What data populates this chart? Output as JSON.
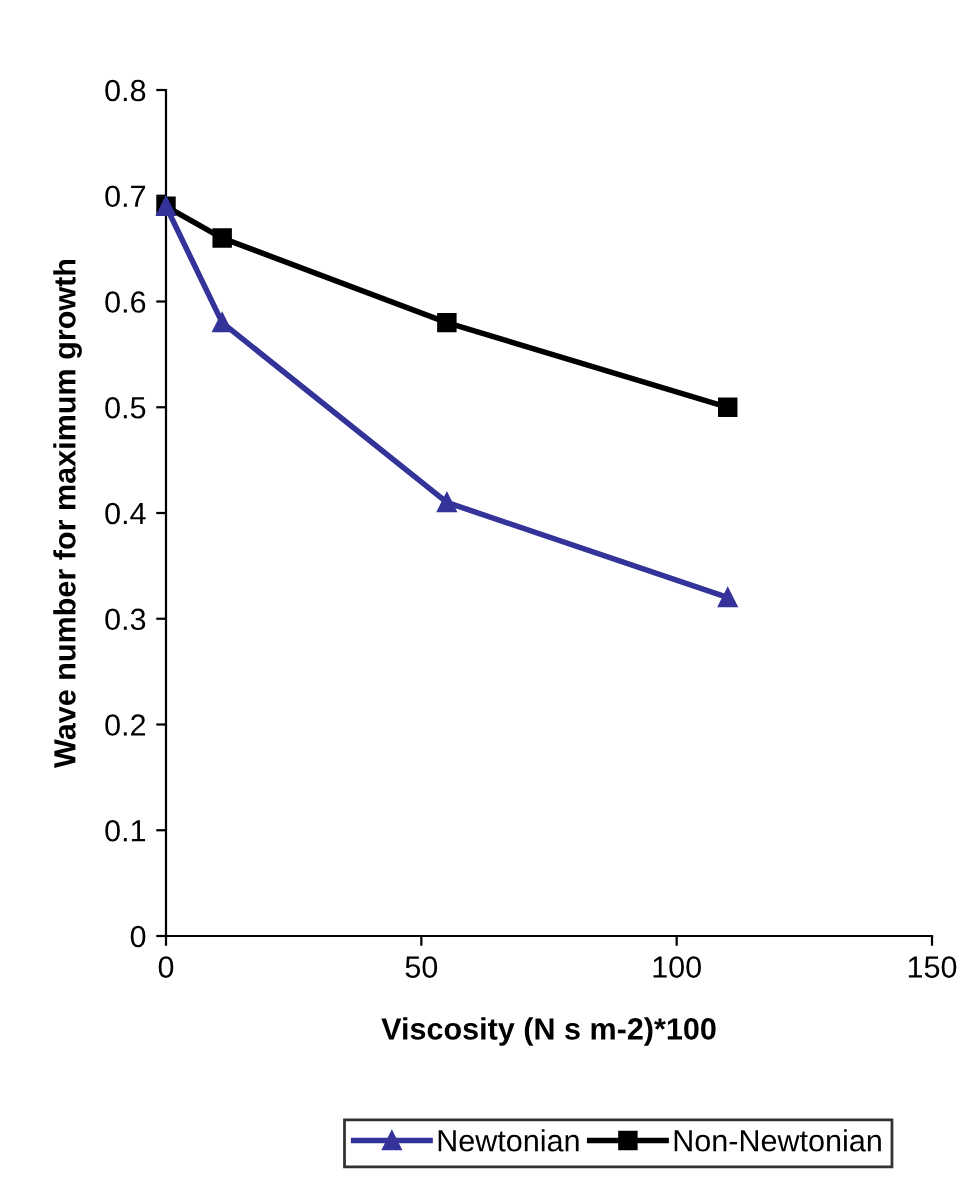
{
  "chart_data": {
    "type": "line",
    "xlabel": "Viscosity (N s m-2)*100",
    "ylabel": "Wave number for maximum growth",
    "x": [
      0,
      11,
      55,
      110
    ],
    "series": [
      {
        "name": "Newtonian",
        "color": "#333399",
        "values": [
          0.69,
          0.58,
          0.41,
          0.32
        ],
        "marker": "triangle"
      },
      {
        "name": "Non-Newtonian",
        "color": "#000000",
        "values": [
          0.69,
          0.66,
          0.58,
          0.5
        ],
        "marker": "square"
      }
    ],
    "xlim": [
      0,
      150
    ],
    "xticks": [
      0,
      50,
      100,
      150
    ],
    "ylim": [
      0,
      0.8
    ],
    "yticks": [
      0,
      0.1,
      0.2,
      0.3,
      0.4,
      0.5,
      0.6,
      0.7,
      0.8
    ],
    "legend": "bottom",
    "grid": false,
    "line_style": "solid"
  }
}
